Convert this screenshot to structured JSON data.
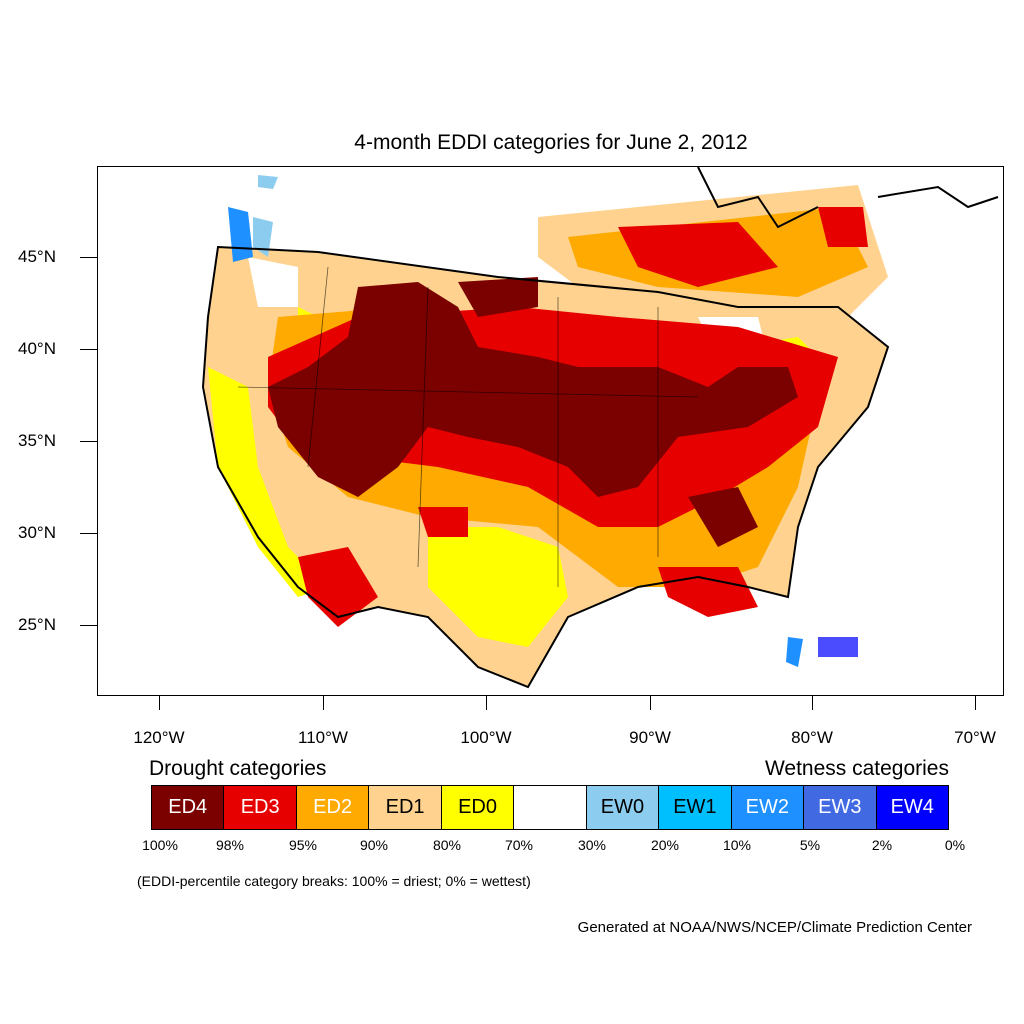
{
  "title": "4-month EDDI categories for June 2, 2012",
  "axes": {
    "lat_labels": [
      "45°N",
      "40°N",
      "35°N",
      "30°N",
      "25°N"
    ],
    "lon_labels": [
      "120°W",
      "110°W",
      "100°W",
      "90°W",
      "80°W",
      "70°W"
    ]
  },
  "legend": {
    "drought_heading": "Drought categories",
    "wetness_heading": "Wetness categories",
    "categories": [
      {
        "label": "ED4",
        "color": "#7b0000",
        "text_color": "#ffffff"
      },
      {
        "label": "ED3",
        "color": "#e60000",
        "text_color": "#ffffff"
      },
      {
        "label": "ED2",
        "color": "#ffaa00",
        "text_color": "#ffffff"
      },
      {
        "label": "ED1",
        "color": "#ffd38f",
        "text_color": "#000000"
      },
      {
        "label": "ED0",
        "color": "#ffff00",
        "text_color": "#000000"
      },
      {
        "label": "",
        "color": "#ffffff",
        "text_color": "#000000"
      },
      {
        "label": "EW0",
        "color": "#8ccdef",
        "text_color": "#000000"
      },
      {
        "label": "EW1",
        "color": "#00bfff",
        "text_color": "#000000"
      },
      {
        "label": "EW2",
        "color": "#1e90ff",
        "text_color": "#ffffff"
      },
      {
        "label": "EW3",
        "color": "#4169e1",
        "text_color": "#ffffff"
      },
      {
        "label": "EW4",
        "color": "#0000ff",
        "text_color": "#ffffff"
      }
    ],
    "breaks": [
      "100%",
      "98%",
      "95%",
      "90%",
      "80%",
      "70%",
      "30%",
      "20%",
      "10%",
      "5%",
      "2%",
      "0%"
    ]
  },
  "note": "(EDDI-percentile category breaks: 100% = driest; 0% = wettest)",
  "credit": "Generated at NOAA/NWS/NCEP/Climate Prediction Center"
}
